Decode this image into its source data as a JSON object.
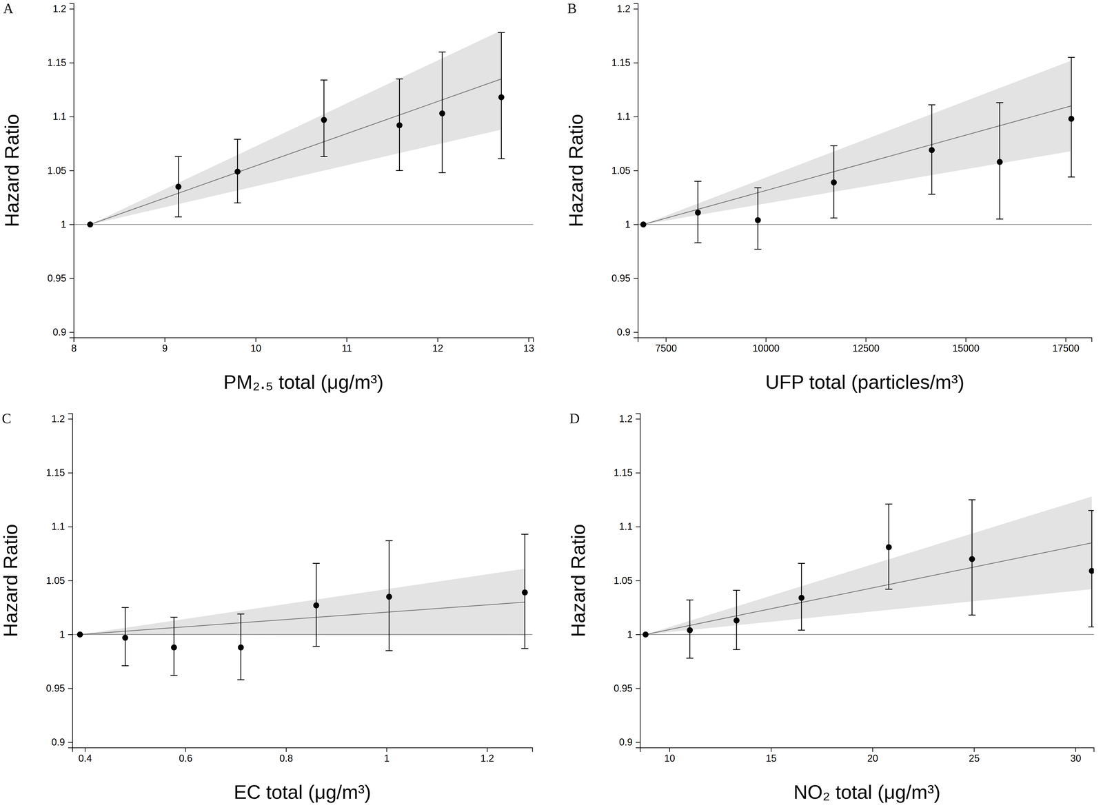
{
  "chart_data": [
    {
      "type": "scatter",
      "title": "A",
      "x_label": "PM₂.₅ total (μg/m³)",
      "y_label": "Hazard Ratio",
      "x": [
        8.18,
        9.15,
        9.8,
        10.75,
        11.58,
        12.05,
        12.7
      ],
      "values": [
        1.0,
        1.035,
        1.049,
        1.097,
        1.092,
        1.103,
        1.118
      ],
      "ci_lower": [
        1.0,
        1.007,
        1.02,
        1.063,
        1.05,
        1.048,
        1.061
      ],
      "ci_upper": [
        1.0,
        1.063,
        1.079,
        1.134,
        1.135,
        1.16,
        1.178
      ],
      "fit": {
        "x": [
          8.18,
          12.7
        ],
        "hr": [
          1.0,
          1.135
        ],
        "lower": [
          1.0,
          1.088
        ],
        "upper": [
          1.0,
          1.18
        ]
      },
      "hline": 1,
      "xlim": [
        8,
        13.05
      ],
      "xticks": [
        8,
        9,
        10,
        11,
        12,
        13
      ],
      "ylim": [
        0.895,
        1.205
      ],
      "yticks": [
        0.9,
        0.95,
        1,
        1.05,
        1.1,
        1.15,
        1.2
      ],
      "color": "#000000",
      "marker": "circle"
    },
    {
      "type": "scatter",
      "title": "B",
      "x_label": "UFP total (particles/m³)",
      "y_label": "Hazard Ratio",
      "x": [
        6935,
        8300,
        9800,
        11700,
        14150,
        15850,
        17640
      ],
      "values": [
        1.0,
        1.011,
        1.004,
        1.039,
        1.069,
        1.058,
        1.098
      ],
      "ci_lower": [
        1.0,
        0.983,
        0.977,
        1.006,
        1.028,
        1.005,
        1.044
      ],
      "ci_upper": [
        1.0,
        1.04,
        1.034,
        1.073,
        1.111,
        1.113,
        1.155
      ],
      "fit": {
        "x": [
          6935,
          17640
        ],
        "hr": [
          1.0,
          1.11
        ],
        "lower": [
          1.0,
          1.068
        ],
        "upper": [
          1.0,
          1.152
        ]
      },
      "hline": 1,
      "xlim": [
        6800,
        18150
      ],
      "xticks": [
        7500,
        10000,
        12500,
        15000,
        17500
      ],
      "ylim": [
        0.895,
        1.205
      ],
      "yticks": [
        0.9,
        0.95,
        1,
        1.05,
        1.1,
        1.15,
        1.2
      ],
      "color": "#000000",
      "marker": "circle"
    },
    {
      "type": "scatter",
      "title": "C",
      "x_label": "EC total (μg/m³)",
      "y_label": "Hazard Ratio",
      "x": [
        0.39,
        0.48,
        0.577,
        0.71,
        0.86,
        1.005,
        1.275
      ],
      "values": [
        1.0,
        0.997,
        0.988,
        0.988,
        1.027,
        1.035,
        1.039
      ],
      "ci_lower": [
        1.0,
        0.971,
        0.962,
        0.958,
        0.989,
        0.985,
        0.987
      ],
      "ci_upper": [
        1.0,
        1.025,
        1.016,
        1.019,
        1.066,
        1.087,
        1.093
      ],
      "fit": {
        "x": [
          0.39,
          1.275
        ],
        "hr": [
          1.0,
          1.03
        ],
        "lower": [
          1.0,
          0.999
        ],
        "upper": [
          1.0,
          1.061
        ]
      },
      "hline": 1,
      "xlim": [
        0.375,
        1.29
      ],
      "xticks": [
        0.4,
        0.6,
        0.8,
        1,
        1.2
      ],
      "ylim": [
        0.895,
        1.205
      ],
      "yticks": [
        0.9,
        0.95,
        1,
        1.05,
        1.1,
        1.15,
        1.2
      ],
      "color": "#000000",
      "marker": "circle"
    },
    {
      "type": "scatter",
      "title": "D",
      "x_label": "NO₂ total (μg/m³)",
      "y_label": "Hazard Ratio",
      "x": [
        8.82,
        11,
        13.3,
        16.5,
        20.8,
        24.9,
        30.8
      ],
      "values": [
        1.0,
        1.004,
        1.013,
        1.034,
        1.081,
        1.07,
        1.059
      ],
      "ci_lower": [
        1.0,
        0.978,
        0.986,
        1.004,
        1.042,
        1.018,
        1.007
      ],
      "ci_upper": [
        1.0,
        1.032,
        1.041,
        1.066,
        1.121,
        1.125,
        1.115
      ],
      "fit": {
        "x": [
          8.82,
          30.8
        ],
        "hr": [
          1.0,
          1.085
        ],
        "lower": [
          1.0,
          1.042
        ],
        "upper": [
          1.0,
          1.128
        ]
      },
      "hline": 1,
      "xlim": [
        8.55,
        30.9
      ],
      "xticks": [
        10,
        15,
        20,
        25,
        30
      ],
      "ylim": [
        0.895,
        1.205
      ],
      "yticks": [
        0.9,
        0.95,
        1,
        1.05,
        1.1,
        1.15,
        1.2
      ],
      "color": "#000000",
      "marker": "circle"
    }
  ]
}
